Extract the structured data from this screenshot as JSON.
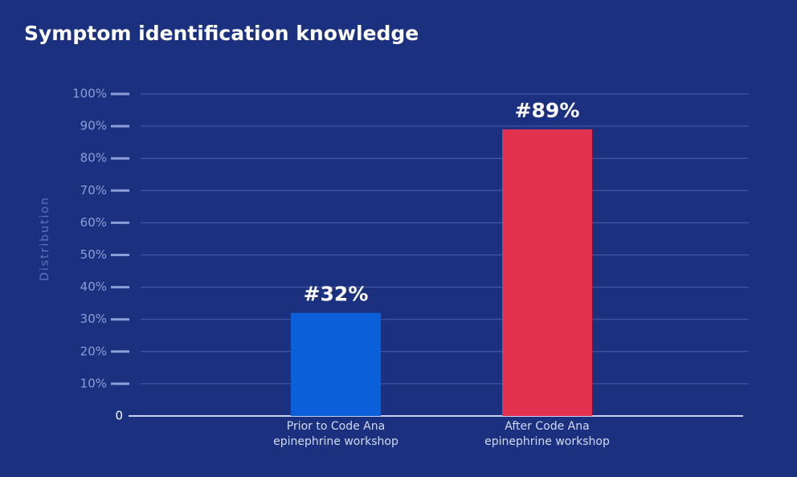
{
  "chart_data": {
    "type": "bar",
    "title": "Symptom identification knowledge",
    "y_label": "Distribution",
    "categories": [
      "Prior to Code Ana\nepinephrine workshop",
      "After Code Ana\nepinephrine workshop"
    ],
    "values": [
      32,
      89
    ],
    "value_labels": [
      "#32%",
      "#89%"
    ],
    "colors": [
      "#0b5fd9",
      "#e3324f"
    ],
    "ylim": [
      0,
      100
    ],
    "yticks": [
      0,
      {
        "value": 10,
        "label": "10%"
      },
      {
        "value": 20,
        "label": "20%"
      },
      {
        "value": 30,
        "label": "30%"
      },
      {
        "value": 40,
        "label": "40%"
      },
      {
        "value": 50,
        "label": "50%"
      },
      {
        "value": 60,
        "label": "60%"
      },
      {
        "value": 70,
        "label": "70%"
      },
      {
        "value": 80,
        "label": "80%"
      },
      {
        "value": 90,
        "label": "90%"
      },
      {
        "value": 100,
        "label": "100%"
      }
    ],
    "grid": true
  }
}
